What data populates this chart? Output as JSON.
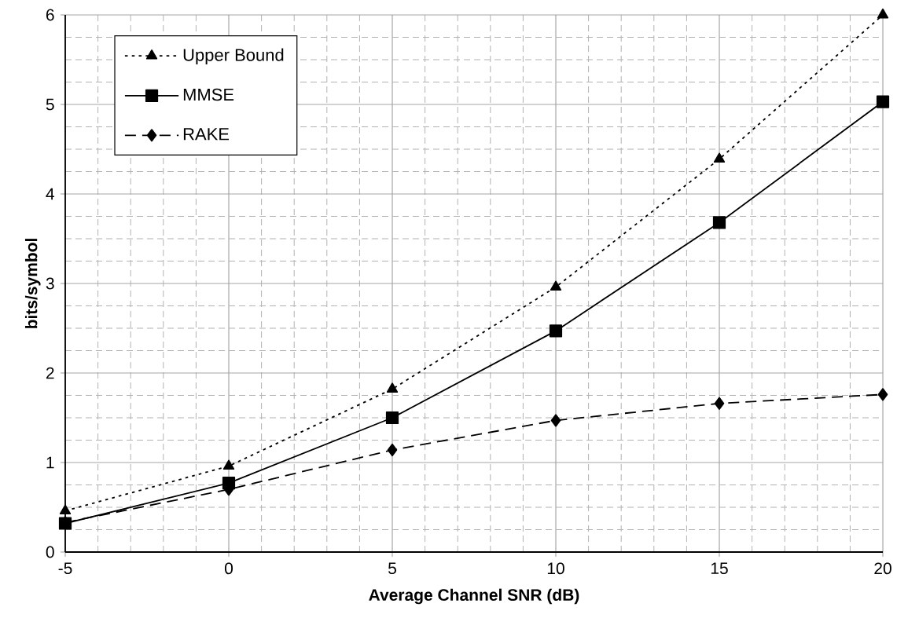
{
  "chart_data": {
    "type": "line",
    "xlabel": "Average Channel SNR (dB)",
    "ylabel": "bits/symbol",
    "x": [
      -5,
      0,
      5,
      10,
      15,
      20
    ],
    "series": [
      {
        "name": "Upper Bound",
        "color": "#000000",
        "marker": "triangle",
        "line_style": "dotted",
        "values": [
          0.46,
          0.96,
          1.82,
          2.96,
          4.39,
          6.0
        ]
      },
      {
        "name": "MMSE",
        "color": "#000000",
        "marker": "square",
        "line_style": "solid",
        "values": [
          0.32,
          0.77,
          1.5,
          2.47,
          3.68,
          5.03
        ]
      },
      {
        "name": "RAKE",
        "color": "#000000",
        "marker": "diamond",
        "line_style": "dashed",
        "values": [
          0.33,
          0.7,
          1.14,
          1.47,
          1.66,
          1.76
        ]
      }
    ],
    "xlim": [
      -5,
      20
    ],
    "xticks": [
      -5,
      0,
      5,
      10,
      15,
      20
    ],
    "ylim": [
      0,
      6
    ],
    "yticks": [
      0,
      1,
      2,
      3,
      4,
      5,
      6
    ],
    "grid": true,
    "legend": "top left"
  }
}
